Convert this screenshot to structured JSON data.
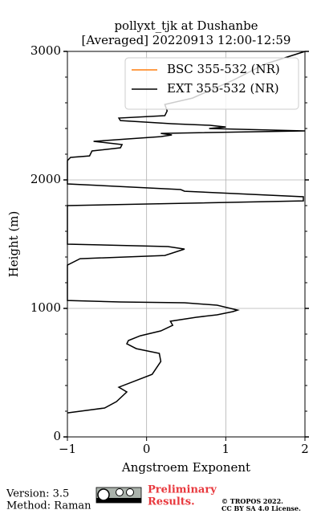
{
  "chart_data": {
    "type": "line",
    "title": [
      "pollyxt_tjk at Dushanbe",
      "[Averaged] 20220913 12:00-12:59"
    ],
    "x_label": "Angstroem Exponent",
    "y_label": "Height (m)",
    "xlim": [
      -1,
      2
    ],
    "xticks": [
      {
        "value": -1,
        "label": "−1"
      },
      0,
      1,
      2
    ],
    "ylim": [
      0,
      3000
    ],
    "yticks": [
      0,
      1000,
      2000,
      3000
    ],
    "yminor_ticks": [
      200,
      400,
      600,
      800,
      1200,
      1400,
      1600,
      1800,
      2200,
      2400,
      2600,
      2800
    ],
    "grid": true,
    "legend": "upper right",
    "series": [
      {
        "name": "BSC 355-532 (NR)",
        "color": "#ff7f0e",
        "values": [],
        "heights": []
      },
      {
        "name": "EXT 355-532 (NR)",
        "color": "#000000",
        "values": [
          -1,
          -0.53,
          -0.38,
          -0.25,
          -0.35,
          0.07,
          0.18,
          0.16,
          -0.13,
          -0.25,
          -0.23,
          -0.08,
          0.18,
          0.33,
          0.3,
          0.63,
          0.89,
          1.09,
          1.15,
          0.89,
          0.48,
          -0.33,
          -1,
          -1,
          -0.84,
          0.23,
          0.48,
          0.27,
          -1,
          -1,
          1.98,
          1.98,
          0.48,
          0.43,
          -1,
          -1,
          -0.96,
          -0.72,
          -0.69,
          -0.33,
          -0.31,
          -0.67,
          0.18,
          0.32,
          0.18,
          2,
          0.79,
          1,
          0.8,
          0.33,
          -0.33,
          -0.35,
          0.23,
          0.26,
          0.23,
          0.58,
          1.09,
          1.49,
          2
        ],
        "heights": [
          187,
          225,
          275,
          350,
          387,
          487,
          587,
          650,
          687,
          725,
          750,
          787,
          825,
          869,
          900,
          931,
          950,
          975,
          987,
          1025,
          1044,
          1050,
          1062,
          1337,
          1387,
          1412,
          1462,
          1481,
          1500,
          1800,
          1837,
          1869,
          1912,
          1925,
          1969,
          2150,
          2175,
          2187,
          2225,
          2250,
          2275,
          2300,
          2337,
          2350,
          2362,
          2381,
          2400,
          2412,
          2425,
          2437,
          2462,
          2481,
          2500,
          2537,
          2587,
          2637,
          2775,
          2900,
          3000
        ]
      }
    ]
  },
  "footer": {
    "version": "Version: 3.5",
    "method": "Method: Raman",
    "preliminary": [
      "Preliminary",
      "Results."
    ],
    "license": [
      "© TROPOS 2022.",
      "CC BY SA 4.0 License."
    ]
  }
}
